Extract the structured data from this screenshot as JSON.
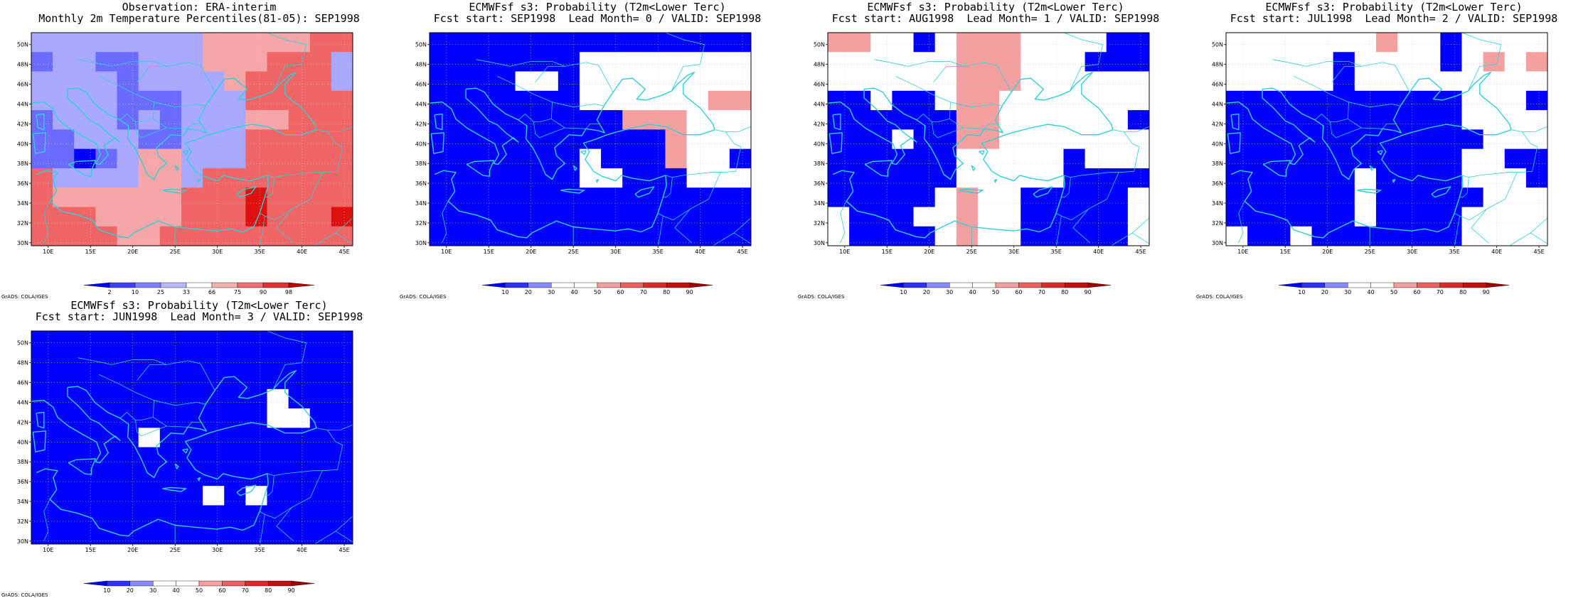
{
  "panels": [
    {
      "id": "obs",
      "title_line1": "Observation: ERA-interim",
      "title_line2": "Monthly 2m Temperature Percentiles(81-05): SEP1998",
      "colorbar_labels": [
        "2",
        "10",
        "25",
        "33",
        "66",
        "75",
        "90",
        "98"
      ],
      "legend_type": "percentile",
      "grid": [
        [
          3,
          3,
          3,
          3,
          3,
          3,
          3,
          3,
          5,
          5,
          5,
          5,
          5,
          6,
          6
        ],
        [
          2,
          3,
          3,
          2,
          2,
          3,
          3,
          3,
          5,
          5,
          5,
          6,
          6,
          6,
          3
        ],
        [
          3,
          3,
          3,
          3,
          2,
          3,
          3,
          3,
          3,
          5,
          6,
          6,
          6,
          6,
          3
        ],
        [
          3,
          3,
          3,
          3,
          2,
          2,
          2,
          3,
          3,
          3,
          6,
          6,
          6,
          6,
          6
        ],
        [
          2,
          3,
          3,
          3,
          2,
          3,
          2,
          3,
          3,
          3,
          5,
          5,
          6,
          6,
          6
        ],
        [
          2,
          2,
          3,
          3,
          3,
          2,
          2,
          3,
          3,
          3,
          6,
          6,
          6,
          6,
          6
        ],
        [
          2,
          2,
          1,
          2,
          3,
          5,
          5,
          3,
          3,
          3,
          6,
          6,
          6,
          6,
          6
        ],
        [
          6,
          3,
          3,
          3,
          3,
          5,
          5,
          3,
          6,
          6,
          6,
          6,
          6,
          6,
          6
        ],
        [
          6,
          5,
          5,
          5,
          5,
          5,
          5,
          6,
          6,
          6,
          7,
          6,
          6,
          6,
          6
        ],
        [
          6,
          6,
          6,
          5,
          5,
          5,
          5,
          6,
          6,
          6,
          7,
          6,
          6,
          6,
          7
        ],
        [
          6,
          6,
          6,
          6,
          5,
          5,
          6,
          6,
          6,
          6,
          6,
          6,
          6,
          6,
          6
        ]
      ]
    },
    {
      "id": "lead0",
      "title_line1": "ECMWFsf s3: Probability (T2m<Lower Terc)",
      "title_line2": "Fcst start: SEP1998  Lead Month= 0 / VALID: SEP1998",
      "colorbar_labels": [
        "10",
        "20",
        "30",
        "40",
        "50",
        "60",
        "70",
        "80",
        "90"
      ],
      "legend_type": "probability",
      "grid": [
        [
          1,
          1,
          1,
          1,
          1,
          1,
          1,
          1,
          1,
          1,
          1,
          1,
          1,
          1,
          1
        ],
        [
          1,
          1,
          1,
          1,
          1,
          1,
          1,
          3,
          3,
          3,
          3,
          3,
          3,
          3,
          3
        ],
        [
          1,
          1,
          1,
          1,
          3,
          3,
          1,
          3,
          3,
          3,
          3,
          3,
          3,
          3,
          3
        ],
        [
          1,
          1,
          1,
          1,
          1,
          1,
          1,
          3,
          3,
          3,
          3,
          3,
          3,
          5,
          5
        ],
        [
          1,
          1,
          1,
          1,
          1,
          1,
          1,
          1,
          1,
          5,
          5,
          5,
          3,
          3,
          3
        ],
        [
          1,
          1,
          1,
          1,
          1,
          1,
          1,
          1,
          1,
          1,
          1,
          5,
          3,
          3,
          3
        ],
        [
          1,
          1,
          1,
          1,
          1,
          1,
          1,
          3,
          1,
          1,
          1,
          5,
          3,
          3,
          1
        ],
        [
          1,
          1,
          1,
          1,
          1,
          1,
          1,
          3,
          3,
          1,
          1,
          1,
          3,
          3,
          3
        ],
        [
          1,
          1,
          1,
          1,
          1,
          1,
          1,
          1,
          1,
          1,
          1,
          1,
          1,
          1,
          1
        ],
        [
          1,
          1,
          1,
          1,
          1,
          1,
          1,
          1,
          1,
          1,
          1,
          1,
          1,
          1,
          1
        ],
        [
          1,
          1,
          1,
          1,
          1,
          1,
          1,
          1,
          1,
          1,
          1,
          1,
          1,
          1,
          1
        ]
      ]
    },
    {
      "id": "lead1",
      "title_line1": "ECMWFsf s3: Probability (T2m<Lower Terc)",
      "title_line2": "Fcst start: AUG1998  Lead Month= 1 / VALID: SEP1998",
      "colorbar_labels": [
        "10",
        "20",
        "30",
        "40",
        "50",
        "60",
        "70",
        "80",
        "90"
      ],
      "legend_type": "probability",
      "grid": [
        [
          5,
          5,
          3,
          3,
          1,
          3,
          5,
          5,
          5,
          3,
          3,
          3,
          3,
          1,
          1
        ],
        [
          3,
          3,
          3,
          3,
          3,
          3,
          5,
          5,
          5,
          3,
          3,
          3,
          1,
          1,
          1
        ],
        [
          3,
          3,
          3,
          3,
          3,
          3,
          5,
          5,
          5,
          3,
          3,
          3,
          3,
          3,
          3
        ],
        [
          1,
          1,
          3,
          1,
          1,
          3,
          5,
          5,
          3,
          3,
          3,
          3,
          3,
          3,
          3
        ],
        [
          1,
          1,
          1,
          1,
          1,
          1,
          5,
          5,
          3,
          3,
          3,
          3,
          3,
          3,
          1
        ],
        [
          1,
          1,
          1,
          3,
          1,
          1,
          5,
          5,
          3,
          3,
          3,
          3,
          3,
          3,
          3
        ],
        [
          1,
          1,
          1,
          1,
          1,
          1,
          3,
          3,
          3,
          3,
          3,
          1,
          3,
          3,
          3
        ],
        [
          1,
          1,
          1,
          1,
          1,
          1,
          3,
          3,
          3,
          3,
          3,
          1,
          1,
          1,
          1
        ],
        [
          1,
          1,
          1,
          1,
          1,
          3,
          5,
          3,
          3,
          1,
          1,
          1,
          1,
          1,
          3
        ],
        [
          3,
          1,
          1,
          1,
          3,
          3,
          5,
          3,
          3,
          1,
          1,
          1,
          1,
          1,
          3
        ],
        [
          3,
          1,
          1,
          1,
          1,
          3,
          5,
          3,
          3,
          1,
          1,
          1,
          1,
          1,
          3
        ]
      ]
    },
    {
      "id": "lead2",
      "title_line1": "ECMWFsf s3: Probability (T2m<Lower Terc)",
      "title_line2": "Fcst start: JUL1998  Lead Month= 2 / VALID: SEP1998",
      "colorbar_labels": [
        "10",
        "20",
        "30",
        "40",
        "50",
        "60",
        "70",
        "80",
        "90"
      ],
      "legend_type": "probability",
      "grid": [
        [
          3,
          3,
          3,
          3,
          3,
          3,
          3,
          5,
          3,
          3,
          1,
          3,
          3,
          3,
          3
        ],
        [
          3,
          3,
          3,
          3,
          3,
          1,
          3,
          3,
          3,
          3,
          1,
          3,
          5,
          3,
          5
        ],
        [
          3,
          3,
          3,
          3,
          3,
          1,
          3,
          3,
          3,
          3,
          3,
          3,
          3,
          3,
          3
        ],
        [
          1,
          1,
          1,
          1,
          1,
          1,
          1,
          1,
          1,
          1,
          1,
          3,
          3,
          3,
          1
        ],
        [
          1,
          1,
          1,
          1,
          1,
          1,
          1,
          1,
          1,
          1,
          1,
          3,
          3,
          3,
          3
        ],
        [
          1,
          1,
          1,
          1,
          1,
          1,
          1,
          1,
          1,
          1,
          1,
          1,
          3,
          3,
          3
        ],
        [
          1,
          1,
          1,
          1,
          1,
          1,
          1,
          1,
          1,
          1,
          1,
          3,
          3,
          1,
          1
        ],
        [
          1,
          1,
          1,
          1,
          1,
          1,
          3,
          1,
          1,
          1,
          1,
          3,
          3,
          3,
          1
        ],
        [
          1,
          1,
          1,
          1,
          1,
          1,
          3,
          1,
          1,
          1,
          1,
          1,
          3,
          3,
          3
        ],
        [
          1,
          1,
          1,
          1,
          1,
          1,
          3,
          1,
          1,
          1,
          1,
          3,
          3,
          3,
          3
        ],
        [
          3,
          1,
          1,
          3,
          1,
          1,
          1,
          1,
          1,
          1,
          1,
          3,
          3,
          3,
          3
        ]
      ]
    },
    {
      "id": "lead3",
      "title_line1": "ECMWFsf s3: Probability (T2m<Lower Terc)",
      "title_line2": "Fcst start: JUN1998  Lead Month= 3 / VALID: SEP1998",
      "colorbar_labels": [
        "10",
        "20",
        "30",
        "40",
        "50",
        "60",
        "70",
        "80",
        "90"
      ],
      "legend_type": "probability",
      "grid": [
        [
          1,
          1,
          1,
          1,
          1,
          1,
          1,
          1,
          1,
          1,
          1,
          1,
          1,
          1,
          1
        ],
        [
          1,
          1,
          1,
          1,
          1,
          1,
          1,
          1,
          1,
          1,
          1,
          1,
          1,
          1,
          1
        ],
        [
          1,
          1,
          1,
          1,
          1,
          1,
          1,
          1,
          1,
          1,
          1,
          1,
          1,
          1,
          1
        ],
        [
          1,
          1,
          1,
          1,
          1,
          1,
          1,
          1,
          1,
          1,
          1,
          3,
          1,
          1,
          1
        ],
        [
          1,
          1,
          1,
          1,
          1,
          1,
          1,
          1,
          1,
          1,
          1,
          3,
          3,
          1,
          1
        ],
        [
          1,
          1,
          1,
          1,
          1,
          3,
          1,
          1,
          1,
          1,
          1,
          1,
          1,
          1,
          1
        ],
        [
          1,
          1,
          1,
          1,
          1,
          1,
          1,
          1,
          1,
          1,
          1,
          1,
          1,
          1,
          1
        ],
        [
          1,
          1,
          1,
          1,
          1,
          1,
          1,
          1,
          1,
          1,
          1,
          1,
          1,
          1,
          1
        ],
        [
          1,
          1,
          1,
          1,
          1,
          1,
          1,
          1,
          3,
          1,
          3,
          1,
          1,
          1,
          1
        ],
        [
          1,
          1,
          1,
          1,
          1,
          1,
          1,
          1,
          1,
          1,
          1,
          1,
          1,
          1,
          1
        ],
        [
          1,
          1,
          1,
          1,
          1,
          1,
          1,
          1,
          1,
          1,
          1,
          1,
          1,
          1,
          1
        ]
      ]
    }
  ],
  "map": {
    "lon_labels": [
      "10E",
      "15E",
      "20E",
      "25E",
      "30E",
      "35E",
      "40E",
      "45E"
    ],
    "lat_labels": [
      "50N",
      "48N",
      "46N",
      "44N",
      "42N",
      "40N",
      "38N",
      "36N",
      "34N",
      "32N",
      "30N"
    ],
    "lon_range": [
      8,
      46
    ],
    "lat_range": [
      29.7,
      51.2
    ]
  },
  "credit": "GrADS: COLA/IGES",
  "colors": {
    "coastline": "#2fd0d6",
    "gridline": "#c8c8c8",
    "frame": "#000000",
    "percentile_scale": [
      "#ffffff",
      "#0000ff",
      "#6b6bff",
      "#a8a8ff",
      "#ffffff",
      "#f6a6a6",
      "#f06565",
      "#e01010",
      "#c00000"
    ],
    "probability_scale": [
      "#ffffff",
      "#0000ff",
      "#6060ff",
      "#ffffff",
      "#ffffff",
      "#f5a0a0",
      "#e85a5a",
      "#d02020",
      "#b00000"
    ]
  }
}
